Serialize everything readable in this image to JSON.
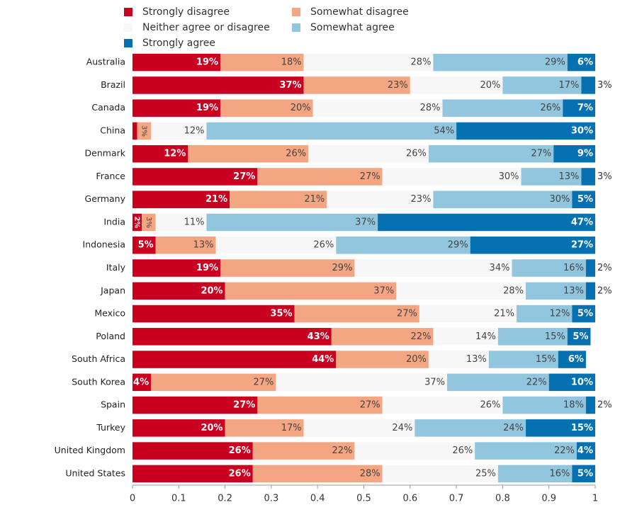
{
  "chart_data": {
    "type": "stacked-bar-horizontal",
    "categories": [
      "Australia",
      "Brazil",
      "Canada",
      "China",
      "Denmark",
      "France",
      "Germany",
      "India",
      "Indonesia",
      "Italy",
      "Japan",
      "Mexico",
      "Poland",
      "South Africa",
      "South Korea",
      "Spain",
      "Turkey",
      "United Kingdom",
      "United States"
    ],
    "series": [
      {
        "name": "Strongly disagree",
        "color": "#ca0020",
        "values": [
          0.19,
          0.37,
          0.19,
          0.01,
          0.12,
          0.27,
          0.21,
          0.02,
          0.05,
          0.19,
          0.2,
          0.35,
          0.43,
          0.44,
          0.04,
          0.27,
          0.2,
          0.26,
          0.26
        ],
        "value_labels": [
          "19%",
          "37%",
          "19%",
          null,
          "12%",
          "27%",
          "21%",
          "2%",
          "5%",
          "19%",
          "20%",
          "35%",
          "43%",
          "44%",
          "4%",
          "27%",
          "20%",
          "26%",
          "26%"
        ]
      },
      {
        "name": "Somewhat disagree",
        "color": "#f4a582",
        "values": [
          0.18,
          0.23,
          0.2,
          0.03,
          0.26,
          0.27,
          0.21,
          0.03,
          0.13,
          0.29,
          0.37,
          0.27,
          0.22,
          0.2,
          0.27,
          0.27,
          0.17,
          0.22,
          0.28
        ],
        "value_labels": [
          "18%",
          "23%",
          "20%",
          "3%",
          "26%",
          "27%",
          "21%",
          "3%",
          "13%",
          "29%",
          "37%",
          "27%",
          "22%",
          "20%",
          "27%",
          "27%",
          "17%",
          "22%",
          "28%"
        ]
      },
      {
        "name": "Neither agree or disagree",
        "color": "#f7f7f7",
        "values": [
          0.28,
          0.2,
          0.28,
          0.12,
          0.26,
          0.3,
          0.23,
          0.11,
          0.26,
          0.34,
          0.28,
          0.21,
          0.14,
          0.13,
          0.37,
          0.26,
          0.24,
          0.26,
          0.25
        ],
        "value_labels": [
          "28%",
          "20%",
          "28%",
          "12%",
          "26%",
          "30%",
          "23%",
          "11%",
          "26%",
          "34%",
          "28%",
          "21%",
          "14%",
          "13%",
          "37%",
          "26%",
          "24%",
          "26%",
          "25%"
        ]
      },
      {
        "name": "Somewhat agree",
        "color": "#92c5de",
        "values": [
          0.29,
          0.17,
          0.26,
          0.54,
          0.27,
          0.13,
          0.3,
          0.37,
          0.29,
          0.16,
          0.13,
          0.12,
          0.15,
          0.15,
          0.22,
          0.18,
          0.24,
          0.22,
          0.16
        ],
        "value_labels": [
          "29%",
          "17%",
          "26%",
          "54%",
          "27%",
          "13%",
          "30%",
          "37%",
          "29%",
          "16%",
          "13%",
          "12%",
          "15%",
          "15%",
          "22%",
          "18%",
          "24%",
          "22%",
          "16%"
        ]
      },
      {
        "name": "Strongly agree",
        "color": "#0571b0",
        "values": [
          0.06,
          0.03,
          0.07,
          0.3,
          0.09,
          0.03,
          0.05,
          0.47,
          0.27,
          0.02,
          0.02,
          0.05,
          0.05,
          0.06,
          0.1,
          0.02,
          0.15,
          0.04,
          0.05
        ],
        "value_labels": [
          "6%",
          "3%",
          "7%",
          "30%",
          "9%",
          "3%",
          "5%",
          "47%",
          "27%",
          "2%",
          "2%",
          "5%",
          "5%",
          "6%",
          "10%",
          "2%",
          "15%",
          "4%",
          "5%"
        ]
      }
    ],
    "xlim": [
      0,
      1
    ],
    "xticks": [
      0,
      0.1,
      0.2,
      0.3,
      0.4,
      0.5,
      0.6,
      0.7,
      0.8,
      0.9,
      1
    ],
    "legend": "top"
  }
}
